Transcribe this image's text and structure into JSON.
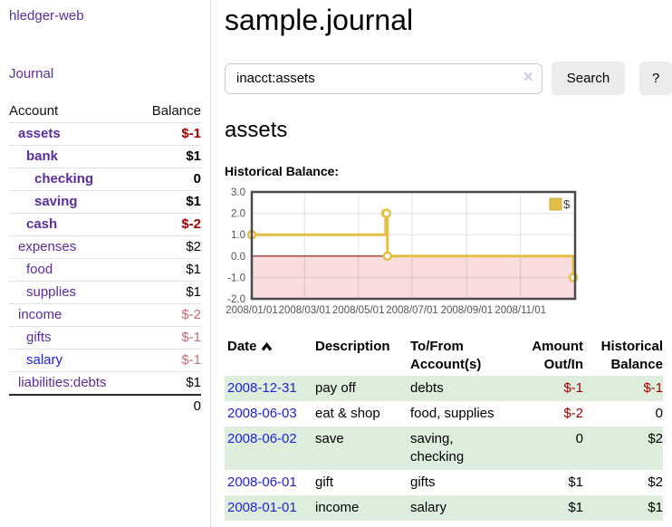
{
  "sidebar": {
    "brand": "hledger-web",
    "journal_link": "Journal",
    "accounts_table": {
      "col_account": "Account",
      "col_balance": "Balance",
      "rows": [
        {
          "name": "assets",
          "balance": "$-1"
        },
        {
          "name": "bank",
          "balance": "$1"
        },
        {
          "name": "checking",
          "balance": "0"
        },
        {
          "name": "saving",
          "balance": "$1"
        },
        {
          "name": "cash",
          "balance": "$-2"
        },
        {
          "name": "expenses",
          "balance": "$2"
        },
        {
          "name": "food",
          "balance": "$1"
        },
        {
          "name": "supplies",
          "balance": "$1"
        },
        {
          "name": "income",
          "balance": "$-2"
        },
        {
          "name": "gifts",
          "balance": "$-1"
        },
        {
          "name": "salary",
          "balance": "$-1"
        },
        {
          "name": "liabilities:debts",
          "balance": "$1"
        }
      ],
      "total": "0"
    }
  },
  "main": {
    "title": "sample.journal",
    "search": {
      "value": "inacct:assets",
      "clear_icon": "×",
      "search_button": "Search",
      "help_button": "?"
    },
    "account_heading": "assets",
    "chart_heading": "Historical Balance:"
  },
  "chart_data": {
    "type": "line",
    "subtype": "step",
    "series": [
      {
        "name": "$",
        "color": "#e5bf45",
        "points": [
          [
            "2008-01-01",
            1
          ],
          [
            "2008-06-01",
            2
          ],
          [
            "2008-06-02",
            2
          ],
          [
            "2008-06-03",
            0
          ],
          [
            "2008-12-31",
            -1
          ]
        ]
      }
    ],
    "xlim": [
      "2008-01-01",
      "2009-01-02"
    ],
    "ylim": [
      -2,
      3
    ],
    "x_ticks": [
      "2008/01/01",
      "2008/03/01",
      "2008/05/01",
      "2008/07/01",
      "2008/09/01",
      "2008/11/01"
    ],
    "y_ticks": [
      "3.0",
      "2.0",
      "1.0",
      "0.0",
      "-1.0",
      "-2.0"
    ],
    "grid": true,
    "legend": {
      "label": "$",
      "position": "top-right"
    },
    "negative_region_color": "#f9dcdc",
    "zero_line_color": "#8c0d0d",
    "tick_label_color": "#545454",
    "border_color": "#4a4a4a"
  },
  "table": {
    "headers": {
      "date": "Date",
      "description": "Description",
      "account": "To/From Account(s)",
      "amount": "Amount Out/In",
      "balance": "Historical Balance"
    },
    "rows": [
      {
        "date": "2008-12-31",
        "description": "pay off",
        "accounts": "debts",
        "amount": "$-1",
        "balance": "$-1"
      },
      {
        "date": "2008-06-03",
        "description": "eat & shop",
        "accounts": "food, supplies",
        "amount": "$-2",
        "balance": "0"
      },
      {
        "date": "2008-06-02",
        "description": "save",
        "accounts": "saving, checking",
        "amount": "0",
        "balance": "$2"
      },
      {
        "date": "2008-06-01",
        "description": "gift",
        "accounts": "gifts",
        "amount": "$1",
        "balance": "$2"
      },
      {
        "date": "2008-01-01",
        "description": "income",
        "accounts": "salary",
        "amount": "$1",
        "balance": "$1"
      }
    ]
  }
}
